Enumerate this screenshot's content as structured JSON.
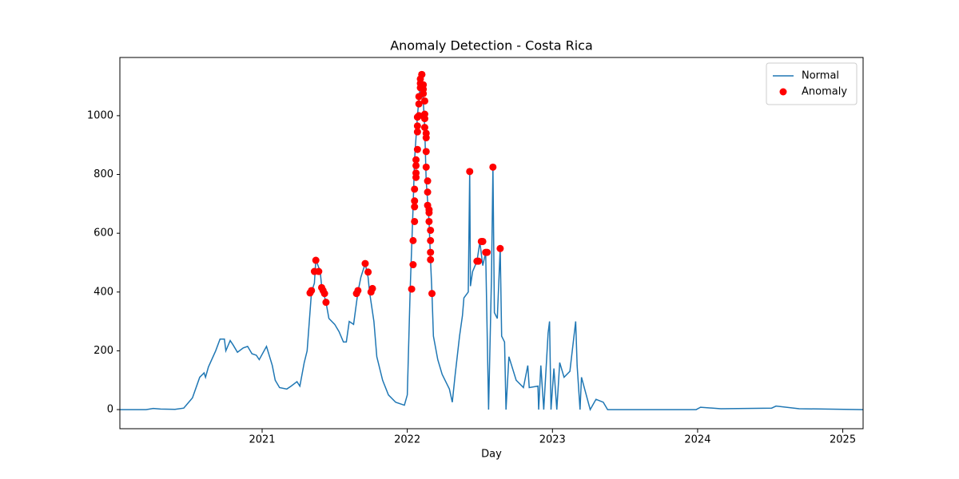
{
  "chart_data": {
    "type": "line",
    "title": "Anomaly Detection - Costa Rica",
    "x_label": "Day",
    "xlim": [
      2020.02,
      2025.14
    ],
    "xticks": [
      2021,
      2022,
      2023,
      2024,
      2025
    ],
    "ylim": [
      -65,
      1198
    ],
    "yticks": [
      0,
      200,
      400,
      600,
      800,
      1000
    ],
    "legend": "upper right",
    "series": [
      {
        "name": "Normal",
        "type": "line",
        "color": "#1f77b4",
        "x": [
          2020.02,
          2020.2,
          2020.25,
          2020.3,
          2020.4,
          2020.46,
          2020.52,
          2020.57,
          2020.6,
          2020.61,
          2020.63,
          2020.68,
          2020.71,
          2020.74,
          2020.75,
          2020.78,
          2020.8,
          2020.83,
          2020.87,
          2020.9,
          2020.93,
          2020.96,
          2020.98,
          2021.03,
          2021.07,
          2021.09,
          2021.12,
          2021.17,
          2021.2,
          2021.24,
          2021.26,
          2021.29,
          2021.31,
          2021.34,
          2021.36,
          2021.37,
          2021.4,
          2021.41,
          2021.44,
          2021.46,
          2021.5,
          2021.53,
          2021.56,
          2021.58,
          2021.6,
          2021.63,
          2021.66,
          2021.68,
          2021.71,
          2021.73,
          2021.74,
          2021.77,
          2021.79,
          2021.83,
          2021.87,
          2021.92,
          2021.98,
          2022.0,
          2022.02,
          2022.04,
          2022.05,
          2022.07,
          2022.09,
          2022.1,
          2022.11,
          2022.12,
          2022.13,
          2022.15,
          2022.16,
          2022.17,
          2022.18,
          2022.21,
          2022.24,
          2022.27,
          2022.29,
          2022.31,
          2022.33,
          2022.36,
          2022.38,
          2022.39,
          2022.42,
          2022.43,
          2022.435,
          2022.45,
          2022.48,
          2022.5,
          2022.52,
          2022.54,
          2022.56,
          2022.58,
          2022.59,
          2022.6,
          2022.62,
          2022.64,
          2022.65,
          2022.67,
          2022.68,
          2022.7,
          2022.75,
          2022.8,
          2022.83,
          2022.84,
          2022.9,
          2022.905,
          2022.92,
          2022.94,
          2022.97,
          2022.98,
          2022.99,
          2023.01,
          2023.03,
          2023.05,
          2023.08,
          2023.12,
          2023.16,
          2023.17,
          2023.19,
          2023.2,
          2023.26,
          2023.3,
          2023.35,
          2023.38,
          2023.99,
          2024.02,
          2024.16,
          2024.51,
          2024.54,
          2024.7,
          2025.14
        ],
        "values": [
          0,
          0,
          4,
          2,
          1,
          5,
          40,
          110,
          125,
          110,
          145,
          200,
          240,
          240,
          200,
          235,
          220,
          195,
          210,
          215,
          190,
          185,
          170,
          215,
          150,
          100,
          75,
          70,
          80,
          95,
          80,
          160,
          200,
          400,
          430,
          510,
          470,
          420,
          365,
          310,
          290,
          265,
          230,
          230,
          300,
          290,
          400,
          450,
          497,
          450,
          400,
          300,
          180,
          100,
          50,
          25,
          15,
          50,
          410,
          690,
          850,
          1000,
          1110,
          1140,
          1050,
          960,
          780,
          640,
          510,
          395,
          250,
          170,
          120,
          90,
          70,
          25,
          120,
          250,
          320,
          380,
          400,
          810,
          420,
          470,
          505,
          570,
          490,
          535,
          0,
          450,
          825,
          330,
          310,
          550,
          250,
          230,
          0,
          180,
          100,
          75,
          150,
          75,
          80,
          0,
          150,
          0,
          260,
          300,
          0,
          140,
          0,
          160,
          110,
          130,
          300,
          150,
          0,
          110,
          0,
          35,
          25,
          0,
          0,
          8,
          3,
          5,
          12,
          3,
          0
        ]
      },
      {
        "name": "Anomaly",
        "type": "scatter",
        "color": "#ff0000",
        "x": [
          2021.33,
          2021.34,
          2021.36,
          2021.37,
          2021.39,
          2021.41,
          2021.42,
          2021.43,
          2021.44,
          2021.65,
          2021.66,
          2021.71,
          2021.73,
          2021.75,
          2021.76,
          2022.03,
          2022.04,
          2022.04,
          2022.05,
          2022.05,
          2022.05,
          2022.05,
          2022.06,
          2022.06,
          2022.06,
          2022.06,
          2022.07,
          2022.07,
          2022.07,
          2022.07,
          2022.08,
          2022.08,
          2022.08,
          2022.09,
          2022.09,
          2022.09,
          2022.1,
          2022.1,
          2022.11,
          2022.11,
          2022.11,
          2022.12,
          2022.12,
          2022.12,
          2022.12,
          2022.13,
          2022.13,
          2022.13,
          2022.13,
          2022.14,
          2022.14,
          2022.14,
          2022.15,
          2022.15,
          2022.15,
          2022.16,
          2022.16,
          2022.16,
          2022.16,
          2022.17,
          2022.43,
          2022.48,
          2022.49,
          2022.51,
          2022.52,
          2022.54,
          2022.55,
          2022.59,
          2022.64
        ],
        "values": [
          397,
          405,
          470,
          508,
          470,
          415,
          405,
          395,
          365,
          395,
          405,
          497,
          468,
          400,
          412,
          410,
          493,
          575,
          640,
          690,
          710,
          750,
          790,
          805,
          830,
          850,
          885,
          945,
          965,
          995,
          1000,
          1040,
          1065,
          1095,
          1110,
          1125,
          1140,
          1140,
          1105,
          1090,
          1075,
          1050,
          1005,
          990,
          960,
          940,
          925,
          878,
          825,
          778,
          740,
          695,
          680,
          670,
          640,
          610,
          575,
          535,
          510,
          395,
          810,
          505,
          505,
          572,
          572,
          535,
          535,
          825,
          548
        ]
      }
    ]
  }
}
